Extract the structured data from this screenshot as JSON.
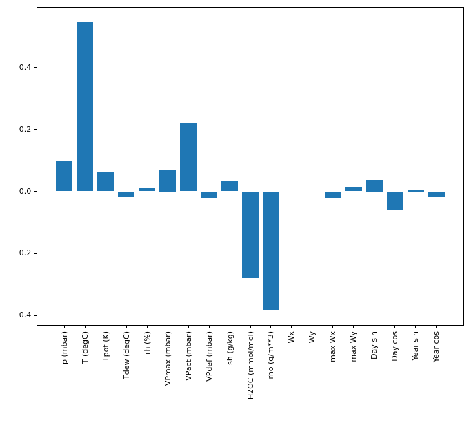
{
  "chart_data": {
    "type": "bar",
    "title": "",
    "xlabel": "",
    "ylabel": "",
    "categories": [
      "p (mbar)",
      "T (degC)",
      "Tpot (K)",
      "Tdew (degC)",
      "rh (%)",
      "VPmax (mbar)",
      "VPact (mbar)",
      "VPdef (mbar)",
      "sh (g/kg)",
      "H2OC (mmol/mol)",
      "rho (g/m**3)",
      "Wx",
      "Wy",
      "max Wx",
      "max Wy",
      "Day sin",
      "Day cos",
      "Year sin",
      "Year cos"
    ],
    "values": [
      0.1,
      0.548,
      0.064,
      -0.02,
      0.012,
      0.068,
      0.219,
      -0.021,
      0.033,
      -0.279,
      -0.385,
      0.0,
      0.0,
      -0.022,
      0.015,
      0.036,
      -0.058,
      0.003,
      -0.02
    ],
    "ylim": [
      -0.434,
      0.596
    ],
    "yticks": [
      -0.4,
      -0.2,
      0.0,
      0.2,
      0.4
    ],
    "ytick_labels": [
      "−0.4",
      "−0.2",
      "0.0",
      "0.2",
      "0.4"
    ],
    "x_tick_rotation": 90,
    "bar_width_units": 0.8,
    "grid": false,
    "legend": null,
    "bar_color": "#1f77b4",
    "spine_color": "#000000",
    "text_color": "#000000",
    "background_color": "#ffffff"
  }
}
